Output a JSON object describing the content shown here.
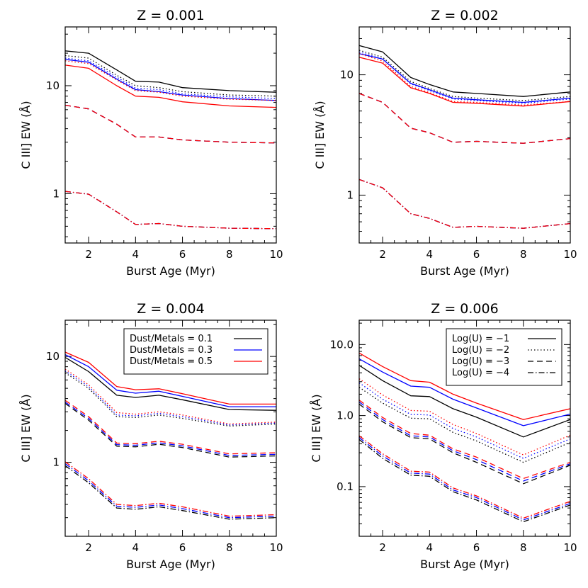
{
  "figure": {
    "colors": {
      "dust_0.1": "#000000",
      "dust_0.3": "#0000ff",
      "dust_0.5": "#ff0000"
    },
    "linestyles": {
      "Log(U) = -1": "solid",
      "Log(U) = -2": "dotted",
      "Log(U) = -3": "dashed",
      "Log(U) = -4": "dash-dot"
    }
  },
  "chart_data": [
    {
      "type": "line",
      "title": "Z = 0.001",
      "xlabel": "Burst Age (Myr)",
      "ylabel": "C III] EW (Å)",
      "yscale": "log",
      "xlim": [
        1,
        10
      ],
      "ylim": [
        0.35,
        35
      ],
      "xticks": [
        "2",
        "4",
        "6",
        "8",
        "10"
      ],
      "yticks": [
        "1",
        "10"
      ],
      "x": [
        1,
        2,
        3.2,
        4,
        5,
        6,
        8,
        10
      ],
      "series": [
        {
          "dust": 0.1,
          "logU": -1,
          "values": [
            21,
            20,
            14,
            11,
            10.8,
            9.6,
            9.0,
            8.7
          ]
        },
        {
          "dust": 0.3,
          "logU": -1,
          "values": [
            17.5,
            16.5,
            11.5,
            9.2,
            8.8,
            8.2,
            7.6,
            7.3
          ]
        },
        {
          "dust": 0.5,
          "logU": -1,
          "values": [
            15.5,
            14.5,
            10.0,
            8.0,
            7.8,
            7.1,
            6.5,
            6.3
          ]
        },
        {
          "dust": 0.1,
          "logU": -2,
          "values": [
            19,
            18,
            12.5,
            10.0,
            9.6,
            8.8,
            8.2,
            8.0
          ]
        },
        {
          "dust": 0.3,
          "logU": -2,
          "values": [
            18,
            17,
            12.0,
            9.5,
            9.2,
            8.4,
            7.9,
            7.6
          ]
        },
        {
          "dust": 0.5,
          "logU": -2,
          "values": [
            17,
            16,
            11.3,
            9.0,
            8.7,
            8.0,
            7.5,
            7.3
          ]
        },
        {
          "dust": 0.1,
          "logU": -3,
          "values": [
            6.6,
            6.1,
            4.4,
            3.35,
            3.35,
            3.15,
            3.0,
            2.95
          ]
        },
        {
          "dust": 0.3,
          "logU": -3,
          "values": [
            6.6,
            6.1,
            4.4,
            3.35,
            3.35,
            3.15,
            3.0,
            2.95
          ]
        },
        {
          "dust": 0.5,
          "logU": -3,
          "values": [
            6.6,
            6.1,
            4.4,
            3.35,
            3.35,
            3.15,
            3.0,
            2.95
          ]
        },
        {
          "dust": 0.1,
          "logU": -4,
          "values": [
            1.05,
            0.99,
            0.68,
            0.52,
            0.53,
            0.5,
            0.48,
            0.475
          ]
        },
        {
          "dust": 0.3,
          "logU": -4,
          "values": [
            1.05,
            0.99,
            0.68,
            0.52,
            0.53,
            0.5,
            0.48,
            0.475
          ]
        },
        {
          "dust": 0.5,
          "logU": -4,
          "values": [
            1.05,
            0.99,
            0.68,
            0.52,
            0.53,
            0.5,
            0.48,
            0.475
          ]
        }
      ]
    },
    {
      "type": "line",
      "title": "Z = 0.002",
      "xlabel": "Burst Age (Myr)",
      "ylabel": "C III] EW (Å)",
      "yscale": "log",
      "xlim": [
        1,
        10
      ],
      "ylim": [
        0.4,
        25
      ],
      "xticks": [
        "2",
        "4",
        "6",
        "8",
        "10"
      ],
      "yticks": [
        "1",
        "10"
      ],
      "x": [
        1,
        2,
        3.2,
        4,
        5,
        6,
        8,
        10
      ],
      "series": [
        {
          "dust": 0.1,
          "logU": -1,
          "values": [
            17.5,
            15.5,
            9.5,
            8.3,
            7.2,
            7.0,
            6.6,
            7.2
          ]
        },
        {
          "dust": 0.3,
          "logU": -1,
          "values": [
            15,
            13.5,
            8.5,
            7.5,
            6.4,
            6.2,
            5.9,
            6.4
          ]
        },
        {
          "dust": 0.5,
          "logU": -1,
          "values": [
            14,
            12.5,
            7.8,
            7.0,
            5.9,
            5.8,
            5.5,
            6.0
          ]
        },
        {
          "dust": 0.1,
          "logU": -2,
          "values": [
            16,
            14,
            8.8,
            7.7,
            6.6,
            6.4,
            6.1,
            6.6
          ]
        },
        {
          "dust": 0.3,
          "logU": -2,
          "values": [
            15.5,
            13.5,
            8.4,
            7.4,
            6.3,
            6.1,
            5.8,
            6.3
          ]
        },
        {
          "dust": 0.5,
          "logU": -2,
          "values": [
            15,
            13.0,
            8.0,
            7.1,
            6.0,
            5.9,
            5.6,
            6.0
          ]
        },
        {
          "dust": 0.1,
          "logU": -3,
          "values": [
            7.0,
            5.9,
            3.6,
            3.3,
            2.75,
            2.8,
            2.7,
            2.95
          ]
        },
        {
          "dust": 0.3,
          "logU": -3,
          "values": [
            7.0,
            5.9,
            3.6,
            3.3,
            2.75,
            2.8,
            2.7,
            2.95
          ]
        },
        {
          "dust": 0.5,
          "logU": -3,
          "values": [
            7.0,
            5.9,
            3.6,
            3.3,
            2.75,
            2.8,
            2.7,
            2.95
          ]
        },
        {
          "dust": 0.1,
          "logU": -4,
          "values": [
            1.35,
            1.15,
            0.7,
            0.64,
            0.54,
            0.55,
            0.53,
            0.58
          ]
        },
        {
          "dust": 0.3,
          "logU": -4,
          "values": [
            1.35,
            1.15,
            0.7,
            0.64,
            0.54,
            0.55,
            0.53,
            0.58
          ]
        },
        {
          "dust": 0.5,
          "logU": -4,
          "values": [
            1.35,
            1.15,
            0.7,
            0.64,
            0.54,
            0.55,
            0.53,
            0.58
          ]
        }
      ]
    },
    {
      "type": "line",
      "title": "Z = 0.004",
      "xlabel": "Burst Age (Myr)",
      "ylabel": "C III] EW (Å)",
      "yscale": "log",
      "xlim": [
        1,
        10
      ],
      "ylim": [
        0.2,
        22
      ],
      "xticks": [
        "2",
        "4",
        "6",
        "8",
        "10"
      ],
      "yticks": [
        "1",
        "10"
      ],
      "legend": {
        "placement": "top-right",
        "entries": [
          "Dust/Metals = 0.1",
          "Dust/Metals = 0.3",
          "Dust/Metals = 0.5"
        ]
      },
      "x": [
        1,
        2,
        3.2,
        4,
        5,
        6,
        8,
        10
      ],
      "series": [
        {
          "dust": 0.1,
          "logU": -1,
          "values": [
            9.8,
            7.2,
            4.3,
            4.1,
            4.3,
            3.9,
            3.15,
            3.1
          ]
        },
        {
          "dust": 0.3,
          "logU": -1,
          "values": [
            10.4,
            8.0,
            4.8,
            4.5,
            4.7,
            4.2,
            3.35,
            3.35
          ]
        },
        {
          "dust": 0.5,
          "logU": -1,
          "values": [
            11.0,
            8.8,
            5.2,
            4.85,
            4.95,
            4.45,
            3.55,
            3.55
          ]
        },
        {
          "dust": 0.1,
          "logU": -2,
          "values": [
            7.0,
            5.0,
            2.7,
            2.65,
            2.8,
            2.6,
            2.2,
            2.3
          ]
        },
        {
          "dust": 0.3,
          "logU": -2,
          "values": [
            7.3,
            5.2,
            2.8,
            2.75,
            2.9,
            2.7,
            2.25,
            2.35
          ]
        },
        {
          "dust": 0.5,
          "logU": -2,
          "values": [
            7.6,
            5.4,
            2.95,
            2.85,
            3.0,
            2.8,
            2.3,
            2.4
          ]
        },
        {
          "dust": 0.1,
          "logU": -3,
          "values": [
            3.6,
            2.5,
            1.42,
            1.4,
            1.48,
            1.38,
            1.12,
            1.15
          ]
        },
        {
          "dust": 0.3,
          "logU": -3,
          "values": [
            3.7,
            2.6,
            1.47,
            1.45,
            1.53,
            1.43,
            1.16,
            1.19
          ]
        },
        {
          "dust": 0.5,
          "logU": -3,
          "values": [
            3.85,
            2.7,
            1.52,
            1.5,
            1.58,
            1.48,
            1.2,
            1.23
          ]
        },
        {
          "dust": 0.1,
          "logU": -4,
          "values": [
            0.93,
            0.64,
            0.37,
            0.36,
            0.38,
            0.35,
            0.29,
            0.3
          ]
        },
        {
          "dust": 0.3,
          "logU": -4,
          "values": [
            0.97,
            0.67,
            0.385,
            0.375,
            0.395,
            0.365,
            0.3,
            0.31
          ]
        },
        {
          "dust": 0.5,
          "logU": -4,
          "values": [
            1.01,
            0.7,
            0.4,
            0.39,
            0.41,
            0.38,
            0.31,
            0.32
          ]
        }
      ]
    },
    {
      "type": "line",
      "title": "Z = 0.006",
      "xlabel": "Burst Age (Myr)",
      "ylabel": "C III] EW (Å)",
      "yscale": "log",
      "xlim": [
        1,
        10
      ],
      "ylim": [
        0.02,
        22
      ],
      "xticks": [
        "2",
        "4",
        "6",
        "8",
        "10"
      ],
      "yticks": [
        "0.1",
        "1.0",
        "10.0"
      ],
      "legend": {
        "placement": "top-right",
        "entries": [
          "Log(U) = −1",
          "Log(U) = −2",
          "Log(U) = −3",
          "Log(U) = −4"
        ]
      },
      "x": [
        1,
        2,
        3.2,
        4,
        5,
        6,
        8,
        10
      ],
      "series": [
        {
          "dust": 0.1,
          "logU": -1,
          "values": [
            5.1,
            3.1,
            1.9,
            1.85,
            1.25,
            0.95,
            0.5,
            0.88
          ]
        },
        {
          "dust": 0.3,
          "logU": -1,
          "values": [
            6.3,
            4.1,
            2.6,
            2.5,
            1.7,
            1.28,
            0.72,
            1.05
          ]
        },
        {
          "dust": 0.5,
          "logU": -1,
          "values": [
            7.6,
            4.9,
            3.1,
            2.95,
            2.0,
            1.5,
            0.88,
            1.25
          ]
        },
        {
          "dust": 0.1,
          "logU": -2,
          "values": [
            2.5,
            1.5,
            0.92,
            0.9,
            0.58,
            0.44,
            0.22,
            0.42
          ]
        },
        {
          "dust": 0.3,
          "logU": -2,
          "values": [
            2.9,
            1.7,
            1.04,
            1.02,
            0.66,
            0.5,
            0.25,
            0.47
          ]
        },
        {
          "dust": 0.5,
          "logU": -2,
          "values": [
            3.3,
            1.95,
            1.18,
            1.15,
            0.75,
            0.56,
            0.28,
            0.53
          ]
        },
        {
          "dust": 0.1,
          "logU": -3,
          "values": [
            1.45,
            0.82,
            0.49,
            0.47,
            0.3,
            0.22,
            0.11,
            0.2
          ]
        },
        {
          "dust": 0.3,
          "logU": -3,
          "values": [
            1.55,
            0.88,
            0.52,
            0.5,
            0.32,
            0.24,
            0.12,
            0.21
          ]
        },
        {
          "dust": 0.5,
          "logU": -3,
          "values": [
            1.65,
            0.94,
            0.56,
            0.53,
            0.34,
            0.26,
            0.13,
            0.22
          ]
        },
        {
          "dust": 0.1,
          "logU": -4,
          "values": [
            0.46,
            0.25,
            0.145,
            0.14,
            0.085,
            0.065,
            0.032,
            0.055
          ]
        },
        {
          "dust": 0.3,
          "logU": -4,
          "values": [
            0.49,
            0.27,
            0.155,
            0.15,
            0.09,
            0.07,
            0.034,
            0.058
          ]
        },
        {
          "dust": 0.5,
          "logU": -4,
          "values": [
            0.52,
            0.29,
            0.165,
            0.16,
            0.096,
            0.074,
            0.036,
            0.062
          ]
        }
      ]
    }
  ]
}
